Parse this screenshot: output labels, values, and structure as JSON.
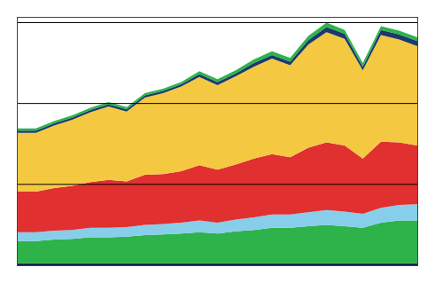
{
  "chart_data": {
    "type": "area",
    "stacked": true,
    "x": [
      0,
      1,
      2,
      3,
      4,
      5,
      6,
      7,
      8,
      9,
      10,
      11,
      12,
      13,
      14,
      15,
      16,
      17,
      18,
      19,
      20,
      21,
      22
    ],
    "series": [
      {
        "color": "#1a3a6b",
        "values": [
          0.3,
          0.3,
          0.3,
          0.3,
          0.3,
          0.3,
          0.3,
          0.3,
          0.3,
          0.3,
          0.3,
          0.3,
          0.3,
          0.3,
          0.3,
          0.3,
          0.3,
          0.3,
          0.3,
          0.3,
          0.3,
          0.3,
          0.3
        ]
      },
      {
        "color": "#2db34a",
        "values": [
          3.0,
          3.0,
          3.2,
          3.3,
          3.5,
          3.5,
          3.6,
          3.8,
          3.9,
          4.0,
          4.2,
          4.0,
          4.3,
          4.5,
          4.8,
          4.8,
          5.0,
          5.2,
          5.0,
          4.8,
          5.5,
          5.8,
          5.8
        ]
      },
      {
        "color": "#87ceeb",
        "values": [
          1.2,
          1.2,
          1.2,
          1.2,
          1.3,
          1.3,
          1.3,
          1.4,
          1.4,
          1.5,
          1.6,
          1.5,
          1.6,
          1.7,
          1.8,
          1.8,
          1.9,
          2.0,
          2.0,
          1.9,
          2.0,
          2.1,
          2.2
        ]
      },
      {
        "color": "#e03030",
        "values": [
          5.5,
          5.5,
          5.8,
          6.0,
          6.2,
          6.5,
          6.2,
          6.8,
          6.8,
          7.0,
          7.5,
          7.2,
          7.5,
          8.0,
          8.2,
          7.8,
          8.8,
          9.2,
          9.0,
          7.5,
          9.0,
          8.5,
          8.0
        ]
      },
      {
        "color": "#f5c842",
        "values": [
          8.0,
          8.0,
          8.5,
          9.0,
          9.5,
          10.0,
          9.5,
          10.5,
          11.0,
          11.5,
          12.0,
          11.5,
          12.0,
          12.5,
          13.0,
          12.5,
          14.0,
          15.0,
          14.5,
          12.0,
          14.5,
          14.0,
          13.5
        ]
      },
      {
        "color": "#1a3a6b",
        "values": [
          0.3,
          0.3,
          0.3,
          0.3,
          0.3,
          0.3,
          0.3,
          0.3,
          0.3,
          0.3,
          0.4,
          0.4,
          0.4,
          0.5,
          0.5,
          0.5,
          0.6,
          0.7,
          0.7,
          0.5,
          0.7,
          0.7,
          0.7
        ]
      },
      {
        "color": "#2db34a",
        "values": [
          0.3,
          0.3,
          0.3,
          0.3,
          0.3,
          0.3,
          0.3,
          0.3,
          0.3,
          0.3,
          0.4,
          0.4,
          0.4,
          0.5,
          0.5,
          0.5,
          0.6,
          0.6,
          0.5,
          0.5,
          0.5,
          0.5,
          0.5
        ]
      }
    ],
    "xlim": [
      0,
      22
    ],
    "ylim": [
      0,
      33.66
    ],
    "yticks": [
      0,
      11,
      22,
      33
    ],
    "grid": true,
    "tick_labels": false
  }
}
